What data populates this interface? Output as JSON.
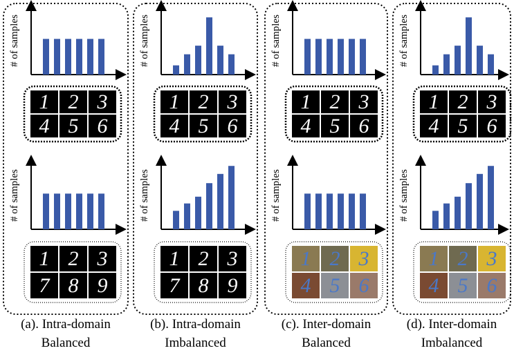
{
  "panels": [
    {
      "caption": [
        "(a). Intra-domain",
        "Balanced"
      ],
      "charts": [
        {
          "y_label": "# of samples",
          "ylim": [
            0,
            110
          ],
          "values": [
            58,
            58,
            58,
            58,
            58,
            58
          ]
        },
        {
          "y_label": "# of samples",
          "ylim": [
            0,
            110
          ],
          "values": [
            58,
            58,
            58,
            58,
            58,
            58
          ]
        }
      ],
      "grids": [
        {
          "digits": [
            "1",
            "2",
            "3",
            "4",
            "5",
            "6"
          ],
          "cell_colors": [
            "#000",
            "#000",
            "#000",
            "#000",
            "#000",
            "#000"
          ],
          "digit_color": "#fff"
        },
        {
          "digits": [
            "1",
            "2",
            "3",
            "7",
            "8",
            "9"
          ],
          "cell_colors": [
            "#000",
            "#000",
            "#000",
            "#000",
            "#000",
            "#000"
          ],
          "digit_color": "#fff"
        }
      ]
    },
    {
      "caption": [
        "(b). Intra-domain",
        "Imbalanced"
      ],
      "charts": [
        {
          "y_label": "# of samples",
          "ylim": [
            0,
            110
          ],
          "values": [
            15,
            33,
            47,
            93,
            47,
            33
          ]
        },
        {
          "y_label": "# of samples",
          "ylim": [
            0,
            110
          ],
          "values": [
            30,
            42,
            53,
            75,
            90,
            103
          ]
        }
      ],
      "grids": [
        {
          "digits": [
            "1",
            "2",
            "3",
            "4",
            "5",
            "6"
          ],
          "cell_colors": [
            "#000",
            "#000",
            "#000",
            "#000",
            "#000",
            "#000"
          ],
          "digit_color": "#fff"
        },
        {
          "digits": [
            "1",
            "2",
            "3",
            "7",
            "8",
            "9"
          ],
          "cell_colors": [
            "#000",
            "#000",
            "#000",
            "#000",
            "#000",
            "#000"
          ],
          "digit_color": "#fff"
        }
      ]
    },
    {
      "caption": [
        "(c). Inter-domain",
        "Balanced"
      ],
      "charts": [
        {
          "y_label": "# of samples",
          "ylim": [
            0,
            110
          ],
          "values": [
            58,
            58,
            58,
            58,
            58,
            58
          ]
        },
        {
          "y_label": "# of samples",
          "ylim": [
            0,
            110
          ],
          "values": [
            58,
            58,
            58,
            58,
            58,
            58
          ]
        }
      ],
      "grids": [
        {
          "digits": [
            "1",
            "2",
            "3",
            "4",
            "5",
            "6"
          ],
          "cell_colors": [
            "#000",
            "#000",
            "#000",
            "#000",
            "#000",
            "#000"
          ],
          "digit_color": "#fff"
        },
        {
          "digits": [
            "1",
            "2",
            "3",
            "4",
            "5",
            "6"
          ],
          "cell_colors": [
            "#8a7a52",
            "#6f6a50",
            "#d8b531",
            "#7a4a32",
            "#8c8f95",
            "#9a7a6a"
          ],
          "digit_color": "#4a78c8"
        }
      ]
    },
    {
      "caption": [
        "(d). Inter-domain",
        "Imbalanced"
      ],
      "charts": [
        {
          "y_label": "# of samples",
          "ylim": [
            0,
            110
          ],
          "values": [
            15,
            33,
            47,
            93,
            47,
            33
          ]
        },
        {
          "y_label": "# of samples",
          "ylim": [
            0,
            110
          ],
          "values": [
            30,
            42,
            53,
            75,
            90,
            103
          ]
        }
      ],
      "grids": [
        {
          "digits": [
            "1",
            "2",
            "3",
            "4",
            "5",
            "6"
          ],
          "cell_colors": [
            "#000",
            "#000",
            "#000",
            "#000",
            "#000",
            "#000"
          ],
          "digit_color": "#fff"
        },
        {
          "digits": [
            "1",
            "2",
            "3",
            "4",
            "5",
            "6"
          ],
          "cell_colors": [
            "#8a7a52",
            "#6f6a50",
            "#d8b531",
            "#7a4a32",
            "#8c8f95",
            "#9a7a6a"
          ],
          "digit_color": "#4a78c8"
        }
      ]
    }
  ]
}
